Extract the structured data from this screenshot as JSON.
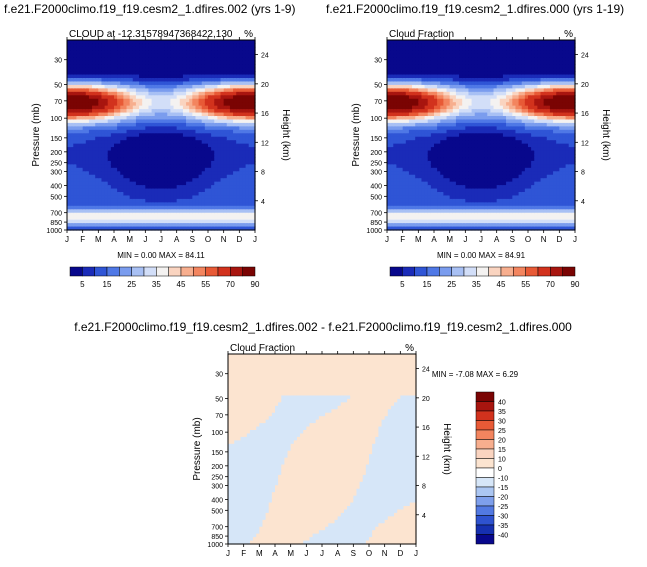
{
  "chart_data": [
    {
      "type": "contour",
      "title": "f.e21.F2000climo.f19_f19.cesm2_1.dfires.002 (yrs 1-9)",
      "left_label": "CLOUD at -12.31578947368422,130",
      "right_label": "%",
      "xlabel": "",
      "ylabel": "Pressure (mb)",
      "ylabel_right": "Height (km)",
      "x_ticks": [
        "J",
        "F",
        "M",
        "A",
        "M",
        "J",
        "J",
        "A",
        "S",
        "O",
        "N",
        "D",
        "J"
      ],
      "y_ticks": [
        "30",
        "50",
        "70",
        "100",
        "150",
        "200",
        "250",
        "300",
        "400",
        "500",
        "700",
        "850",
        "1000"
      ],
      "y_ticks_right": [
        "24",
        "20",
        "16",
        "12",
        "8",
        "4"
      ],
      "stats": "MIN =   0.00 MAX =  84.11",
      "min": 0.0,
      "max": 84.11,
      "colorbar": {
        "orientation": "horizontal",
        "labels": [
          "5",
          "15",
          "25",
          "35",
          "45",
          "55",
          "70",
          "90"
        ],
        "colors": [
          "#08088C",
          "#1A2BB8",
          "#2F55D6",
          "#4F78E6",
          "#7A9CEE",
          "#A8C0F4",
          "#D2DEF8",
          "#F4F2F1",
          "#FAD4C0",
          "#F7AE8E",
          "#F3855F",
          "#E85A36",
          "#D2321D",
          "#A8150F",
          "#7A0403"
        ]
      }
    },
    {
      "type": "contour",
      "title": "f.e21.F2000climo.f19_f19.cesm2_1.dfires.000 (yrs 1-19)",
      "left_label": "Cloud Fraction",
      "right_label": "%",
      "xlabel": "",
      "ylabel": "Pressure (mb)",
      "ylabel_right": "Height (km)",
      "x_ticks": [
        "J",
        "F",
        "M",
        "A",
        "M",
        "J",
        "J",
        "A",
        "S",
        "O",
        "N",
        "D",
        "J"
      ],
      "y_ticks": [
        "30",
        "50",
        "70",
        "100",
        "150",
        "200",
        "250",
        "300",
        "400",
        "500",
        "700",
        "850",
        "1000"
      ],
      "y_ticks_right": [
        "24",
        "20",
        "16",
        "12",
        "8",
        "4"
      ],
      "stats": "MIN =   0.00 MAX =  84.91",
      "min": 0.0,
      "max": 84.91,
      "colorbar": {
        "orientation": "horizontal",
        "labels": [
          "5",
          "15",
          "25",
          "35",
          "45",
          "55",
          "70",
          "90"
        ],
        "colors": [
          "#08088C",
          "#1A2BB8",
          "#2F55D6",
          "#4F78E6",
          "#7A9CEE",
          "#A8C0F4",
          "#D2DEF8",
          "#F4F2F1",
          "#FAD4C0",
          "#F7AE8E",
          "#F3855F",
          "#E85A36",
          "#D2321D",
          "#A8150F",
          "#7A0403"
        ]
      }
    },
    {
      "type": "contour",
      "title": "f.e21.F2000climo.f19_f19.cesm2_1.dfires.002 - f.e21.F2000climo.f19_f19.cesm2_1.dfires.000",
      "left_label": "Cloud Fraction",
      "right_label": "%",
      "xlabel": "",
      "ylabel": "Pressure (mb)",
      "ylabel_right": "Height (km)",
      "x_ticks": [
        "J",
        "F",
        "M",
        "A",
        "M",
        "J",
        "J",
        "A",
        "S",
        "O",
        "N",
        "D",
        "J"
      ],
      "y_ticks": [
        "30",
        "50",
        "70",
        "100",
        "150",
        "200",
        "250",
        "300",
        "400",
        "500",
        "700",
        "850",
        "1000"
      ],
      "y_ticks_right": [
        "24",
        "20",
        "16",
        "12",
        "8",
        "4"
      ],
      "stats": "MIN =  -7.08 MAX =   6.29",
      "min": -7.08,
      "max": 6.29,
      "colorbar": {
        "orientation": "vertical",
        "labels": [
          "40",
          "35",
          "30",
          "25",
          "20",
          "15",
          "10",
          "0",
          "-10",
          "-15",
          "-20",
          "-25",
          "-30",
          "-35",
          "-40"
        ],
        "colors": [
          "#7A0403",
          "#A8150F",
          "#D2321D",
          "#E85A36",
          "#F3855F",
          "#F7AE8E",
          "#FAD4C0",
          "#FCE4D0",
          "#FFFFFF",
          "#D6E6F8",
          "#ABC6F2",
          "#7E9FEC",
          "#5279E2",
          "#2E52CF",
          "#1630B0",
          "#08088C"
        ]
      }
    }
  ]
}
